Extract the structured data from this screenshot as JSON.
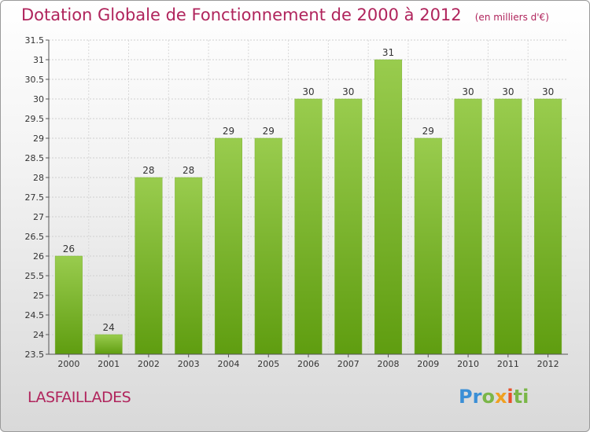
{
  "header": {
    "title": "Dotation Globale de Fonctionnement de 2000 à 2012",
    "unit": "(en milliers d'€)"
  },
  "footer": {
    "commune": "LASFAILLADES",
    "logo_letters": [
      "P",
      "r",
      "o",
      "x",
      "i",
      "t",
      "i"
    ]
  },
  "colors": {
    "title": "#b0245c",
    "bar_top": "#99cc4e",
    "bar_bottom": "#5f9d10",
    "logo": [
      "#3b8fd6",
      "#3b8fd6",
      "#7ab648",
      "#f0a020",
      "#e8502a",
      "#7ab648",
      "#7ab648"
    ]
  },
  "chart_data": {
    "type": "bar",
    "categories": [
      "2000",
      "2001",
      "2002",
      "2003",
      "2004",
      "2005",
      "2006",
      "2007",
      "2008",
      "2009",
      "2010",
      "2011",
      "2012"
    ],
    "values": [
      26,
      24,
      28,
      28,
      29,
      29,
      30,
      30,
      31,
      29,
      30,
      30,
      30
    ],
    "labels": [
      "26",
      "24",
      "28",
      "28",
      "29",
      "29",
      "30",
      "30",
      "31",
      "29",
      "30",
      "30",
      "30"
    ],
    "yticks": [
      "23.5",
      "24",
      "24.5",
      "25",
      "25.5",
      "26",
      "26.5",
      "27",
      "27.5",
      "28",
      "28.5",
      "29",
      "29.5",
      "30",
      "30.5",
      "31",
      "31.5"
    ],
    "ylim": [
      23.5,
      31.5
    ],
    "grid": true,
    "legend": "none"
  }
}
